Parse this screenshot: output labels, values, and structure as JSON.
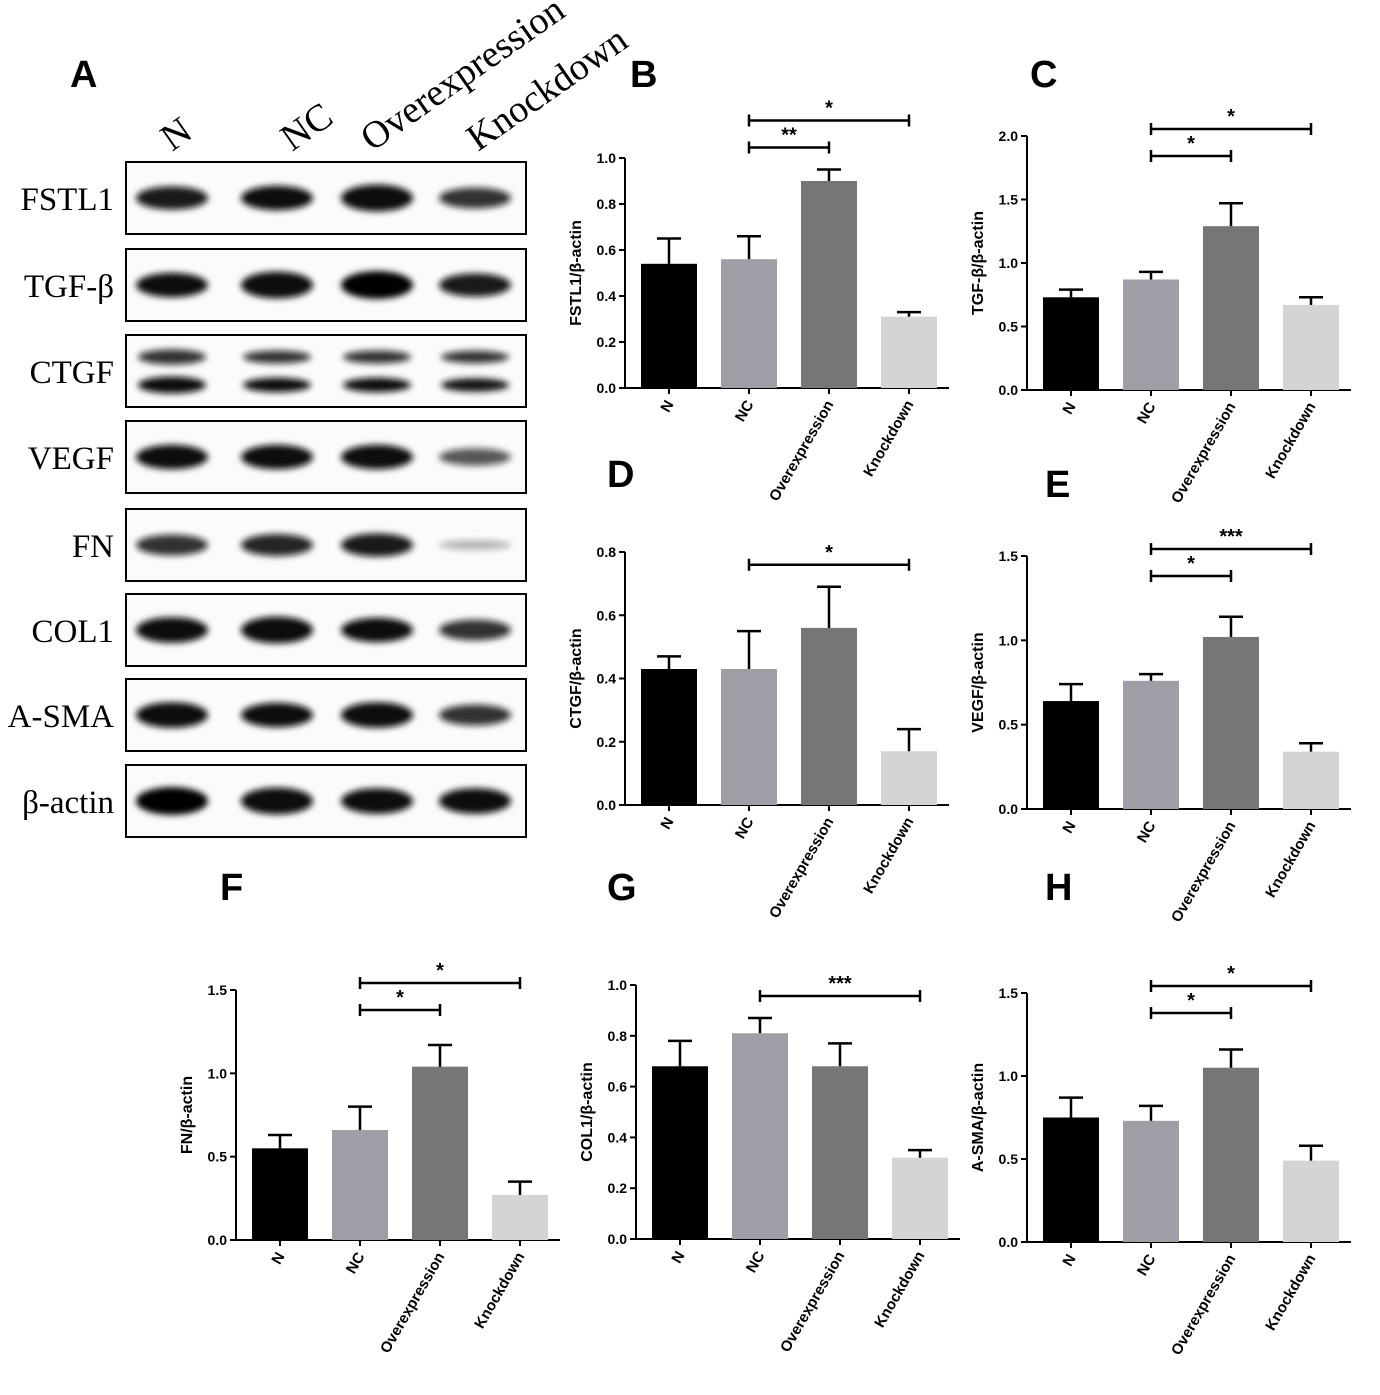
{
  "blot": {
    "letter": "A",
    "lanes": [
      "N",
      "NC",
      "Overexpression",
      "Knockdown"
    ],
    "rows": [
      {
        "label": "FSTL1",
        "intensity": [
          0.8,
          0.85,
          0.95,
          0.7
        ]
      },
      {
        "label": "TGF-β",
        "intensity": [
          0.85,
          0.95,
          1.0,
          0.8
        ]
      },
      {
        "label": "CTGF",
        "intensity": [
          0.8,
          0.65,
          0.65,
          0.6
        ]
      },
      {
        "label": "VEGF",
        "intensity": [
          0.85,
          0.85,
          0.85,
          0.55
        ]
      },
      {
        "label": "FN",
        "intensity": [
          0.7,
          0.75,
          0.8,
          0.2
        ]
      },
      {
        "label": "COL1",
        "intensity": [
          0.9,
          0.95,
          0.85,
          0.7
        ]
      },
      {
        "label": "A-SMA",
        "intensity": [
          0.9,
          0.85,
          0.9,
          0.7
        ]
      },
      {
        "label": "β-actin",
        "intensity": [
          1.0,
          0.95,
          0.9,
          0.9
        ]
      }
    ]
  },
  "colors": [
    "#000000",
    "#9e9ea6",
    "#767676",
    "#d4d4d4"
  ],
  "chart_data": [
    {
      "letter": "B",
      "type": "bar",
      "ylabel": "FSTL1/β-actin",
      "categories": [
        "N",
        "NC",
        "Overexpression",
        "Knockdown"
      ],
      "values": [
        0.54,
        0.56,
        0.9,
        0.31
      ],
      "errors": [
        0.11,
        0.1,
        0.05,
        0.02
      ],
      "ylim": [
        0,
        1.0
      ],
      "yticks": [
        "0.0",
        "0.2",
        "0.4",
        "0.6",
        "0.8",
        "1.0"
      ],
      "brackets": [
        {
          "from": 1,
          "to": 2,
          "label": "**"
        },
        {
          "from": 1,
          "to": 3,
          "label": "*"
        }
      ]
    },
    {
      "letter": "C",
      "type": "bar",
      "ylabel": "TGF-β/β-actin",
      "categories": [
        "N",
        "NC",
        "Overexpression",
        "Knockdown"
      ],
      "values": [
        0.73,
        0.87,
        1.29,
        0.67
      ],
      "errors": [
        0.06,
        0.06,
        0.18,
        0.06
      ],
      "ylim": [
        0,
        2.0
      ],
      "yticks": [
        "0.0",
        "0.5",
        "1.0",
        "1.5",
        "2.0"
      ],
      "brackets": [
        {
          "from": 1,
          "to": 2,
          "label": "*"
        },
        {
          "from": 1,
          "to": 3,
          "label": "*"
        }
      ]
    },
    {
      "letter": "D",
      "type": "bar",
      "ylabel": "CTGF/β-actin",
      "categories": [
        "N",
        "NC",
        "Overexpression",
        "Knockdown"
      ],
      "values": [
        0.43,
        0.43,
        0.56,
        0.17
      ],
      "errors": [
        0.04,
        0.12,
        0.13,
        0.07
      ],
      "ylim": [
        0,
        0.8
      ],
      "yticks": [
        "0.0",
        "0.2",
        "0.4",
        "0.6",
        "0.8"
      ],
      "brackets": [
        {
          "from": 1,
          "to": 3,
          "label": "*"
        }
      ]
    },
    {
      "letter": "E",
      "type": "bar",
      "ylabel": "VEGF/β-actin",
      "categories": [
        "N",
        "NC",
        "Overexpression",
        "Knockdown"
      ],
      "values": [
        0.64,
        0.76,
        1.02,
        0.34
      ],
      "errors": [
        0.1,
        0.04,
        0.12,
        0.05
      ],
      "ylim": [
        0,
        1.5
      ],
      "yticks": [
        "0.0",
        "0.5",
        "1.0",
        "1.5"
      ],
      "brackets": [
        {
          "from": 1,
          "to": 2,
          "label": "*"
        },
        {
          "from": 1,
          "to": 3,
          "label": "***"
        }
      ]
    },
    {
      "letter": "F",
      "type": "bar",
      "ylabel": "FN/β-actin",
      "categories": [
        "N",
        "NC",
        "Overexpression",
        "Knockdown"
      ],
      "values": [
        0.55,
        0.66,
        1.04,
        0.27
      ],
      "errors": [
        0.08,
        0.14,
        0.13,
        0.08
      ],
      "ylim": [
        0,
        1.5
      ],
      "yticks": [
        "0.0",
        "0.5",
        "1.0",
        "1.5"
      ],
      "brackets": [
        {
          "from": 1,
          "to": 2,
          "label": "*"
        },
        {
          "from": 1,
          "to": 3,
          "label": "*"
        }
      ]
    },
    {
      "letter": "G",
      "type": "bar",
      "ylabel": "COL1/β-actin",
      "categories": [
        "N",
        "NC",
        "Overexpression",
        "Knockdown"
      ],
      "values": [
        0.68,
        0.81,
        0.68,
        0.32
      ],
      "errors": [
        0.1,
        0.06,
        0.09,
        0.03
      ],
      "ylim": [
        0,
        1.0
      ],
      "yticks": [
        "0.0",
        "0.2",
        "0.4",
        "0.6",
        "0.8",
        "1.0"
      ],
      "brackets": [
        {
          "from": 1,
          "to": 3,
          "label": "***"
        }
      ]
    },
    {
      "letter": "H",
      "type": "bar",
      "ylabel": "A-SMA/β-actin",
      "categories": [
        "N",
        "NC",
        "Overexpression",
        "Knockdown"
      ],
      "values": [
        0.75,
        0.73,
        1.05,
        0.49
      ],
      "errors": [
        0.12,
        0.09,
        0.11,
        0.09
      ],
      "ylim": [
        0,
        1.5
      ],
      "yticks": [
        "0.0",
        "0.5",
        "1.0",
        "1.5"
      ],
      "brackets": [
        {
          "from": 1,
          "to": 2,
          "label": "*"
        },
        {
          "from": 1,
          "to": 3,
          "label": "*"
        }
      ]
    }
  ]
}
